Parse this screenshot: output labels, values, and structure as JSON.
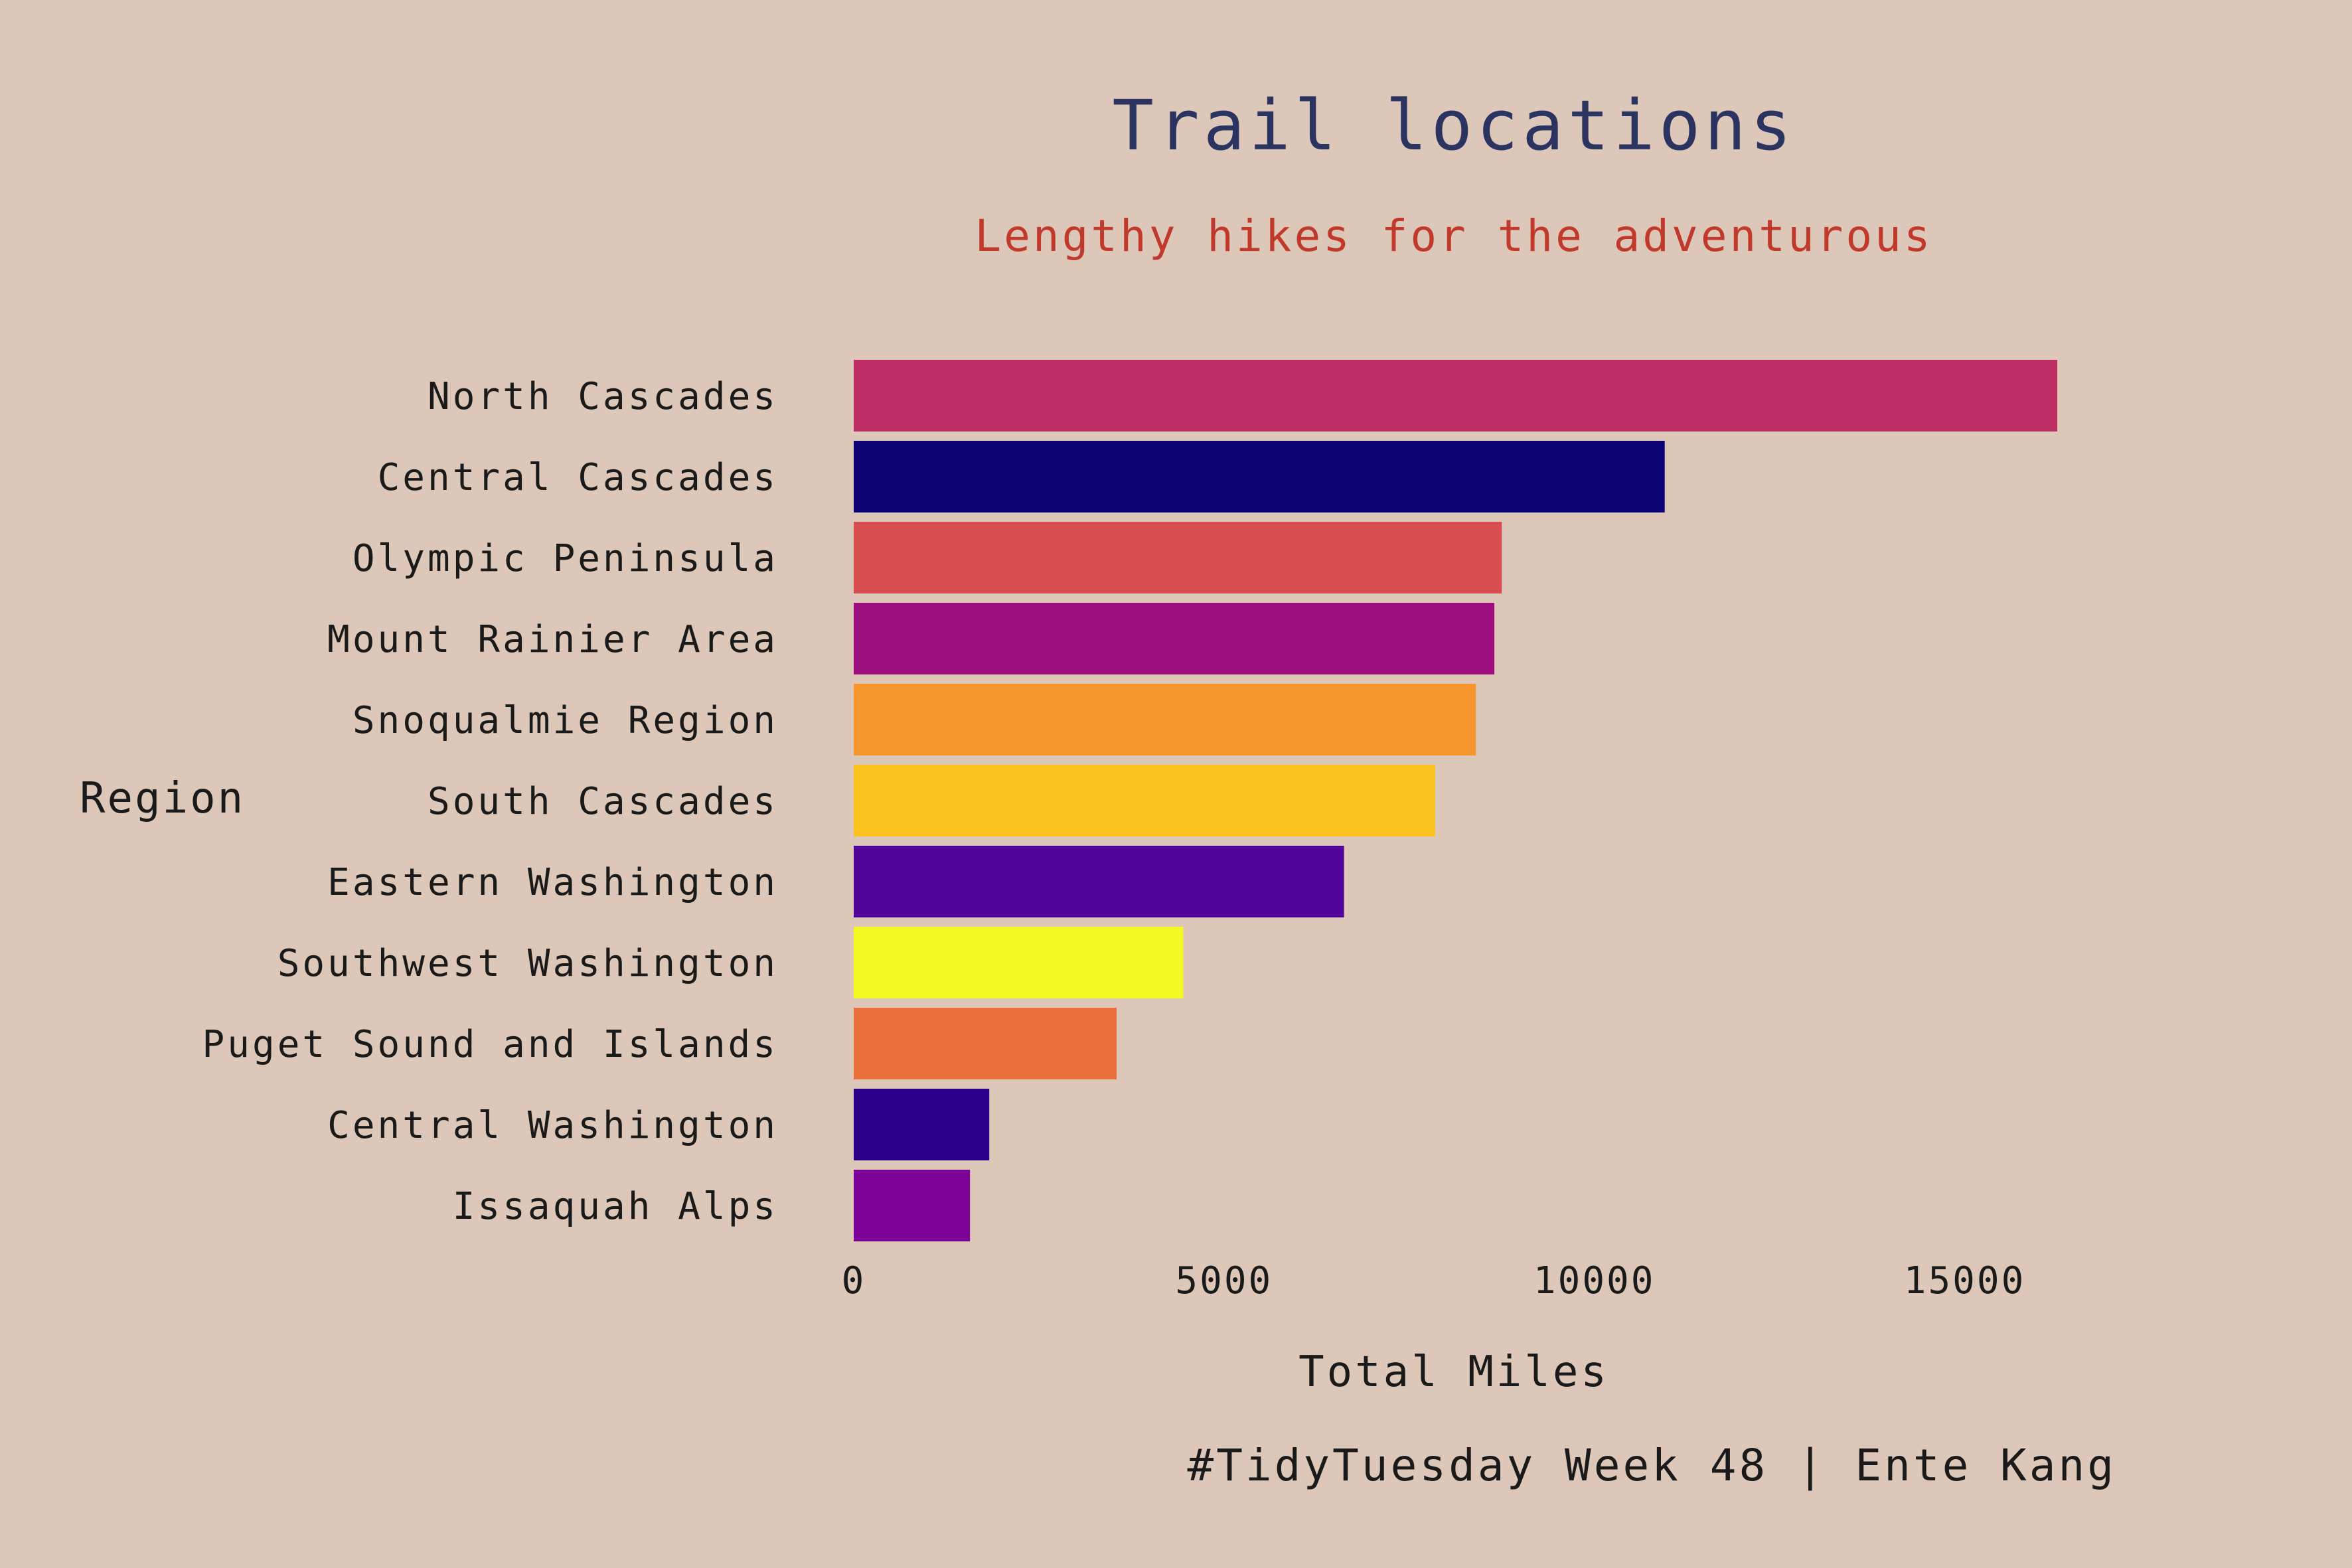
{
  "chart_data": {
    "type": "bar",
    "orientation": "horizontal",
    "title": "Trail locations",
    "subtitle": "Lengthy hikes for the adventurous",
    "xlabel": "Total Miles",
    "ylabel": "Region",
    "caption": "#TidyTuesday Week 48 | Ente Kang",
    "xlim": [
      0,
      17000
    ],
    "xticks": [
      0,
      5000,
      10000,
      15000
    ],
    "grid": false,
    "legend": "none",
    "categories": [
      "North Cascades",
      "Central Cascades",
      "Olympic Peninsula",
      "Mount Rainier Area",
      "Snoqualmie Region",
      "South Cascades",
      "Eastern Washington",
      "Southwest Washington",
      "Puget Sound and Islands",
      "Central Washington",
      "Issaquah Alps"
    ],
    "values": [
      16250,
      10950,
      8750,
      8650,
      8400,
      7850,
      6620,
      4450,
      3550,
      1830,
      1570
    ],
    "bar_colors": [
      "#bd2d63",
      "#0d0274",
      "#d94f50",
      "#9c0f7d",
      "#f7962d",
      "#fac21e",
      "#520398",
      "#f0f921",
      "#ea6f3c",
      "#2c008b",
      "#7c0398"
    ]
  },
  "colors": {
    "background": "#dcc7b8",
    "title": "#2b3461",
    "subtitle": "#c0392b",
    "text": "#1a1a1a"
  }
}
